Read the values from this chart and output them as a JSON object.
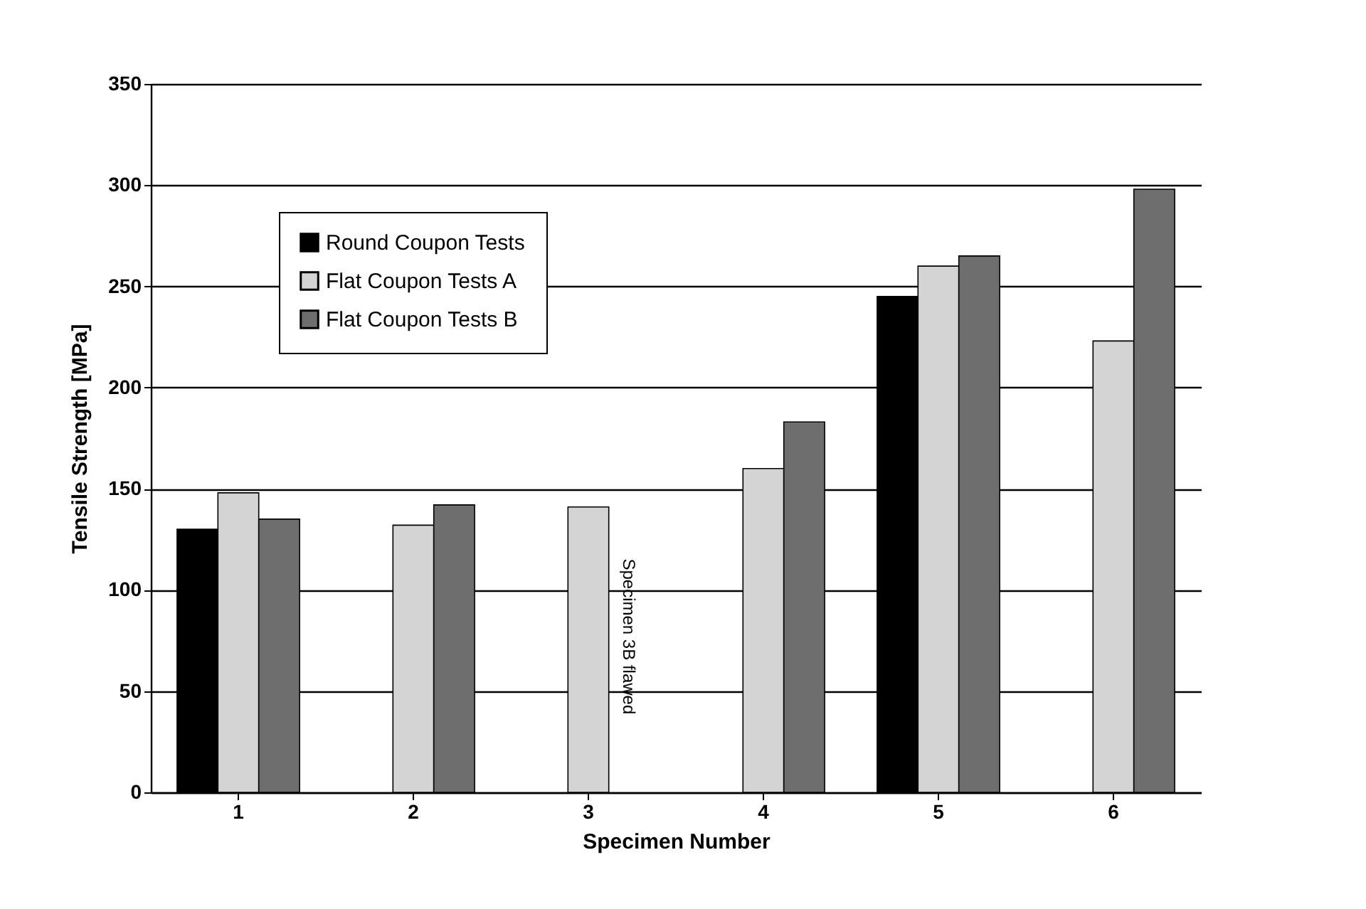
{
  "chart_data": {
    "type": "bar",
    "xlabel": "Specimen Number",
    "ylabel": "Tensile Strength [MPa]",
    "categories": [
      "1",
      "2",
      "3",
      "4",
      "5",
      "6"
    ],
    "series": [
      {
        "name": "Round Coupon Tests",
        "color": "#000000",
        "values": [
          130,
          null,
          null,
          null,
          245,
          null
        ]
      },
      {
        "name": "Flat Coupon Tests A",
        "color": "#d4d4d4",
        "values": [
          148,
          132,
          141,
          160,
          260,
          223
        ]
      },
      {
        "name": "Flat Coupon Tests B",
        "color": "#6e6e6e",
        "values": [
          135,
          142,
          null,
          183,
          265,
          298
        ]
      }
    ],
    "ylim": [
      0,
      350
    ],
    "yticks": [
      0,
      50,
      100,
      150,
      200,
      250,
      300,
      350
    ],
    "grid": "y",
    "legend": "top left",
    "annotations": [
      "Specimen 3B flawed"
    ]
  }
}
